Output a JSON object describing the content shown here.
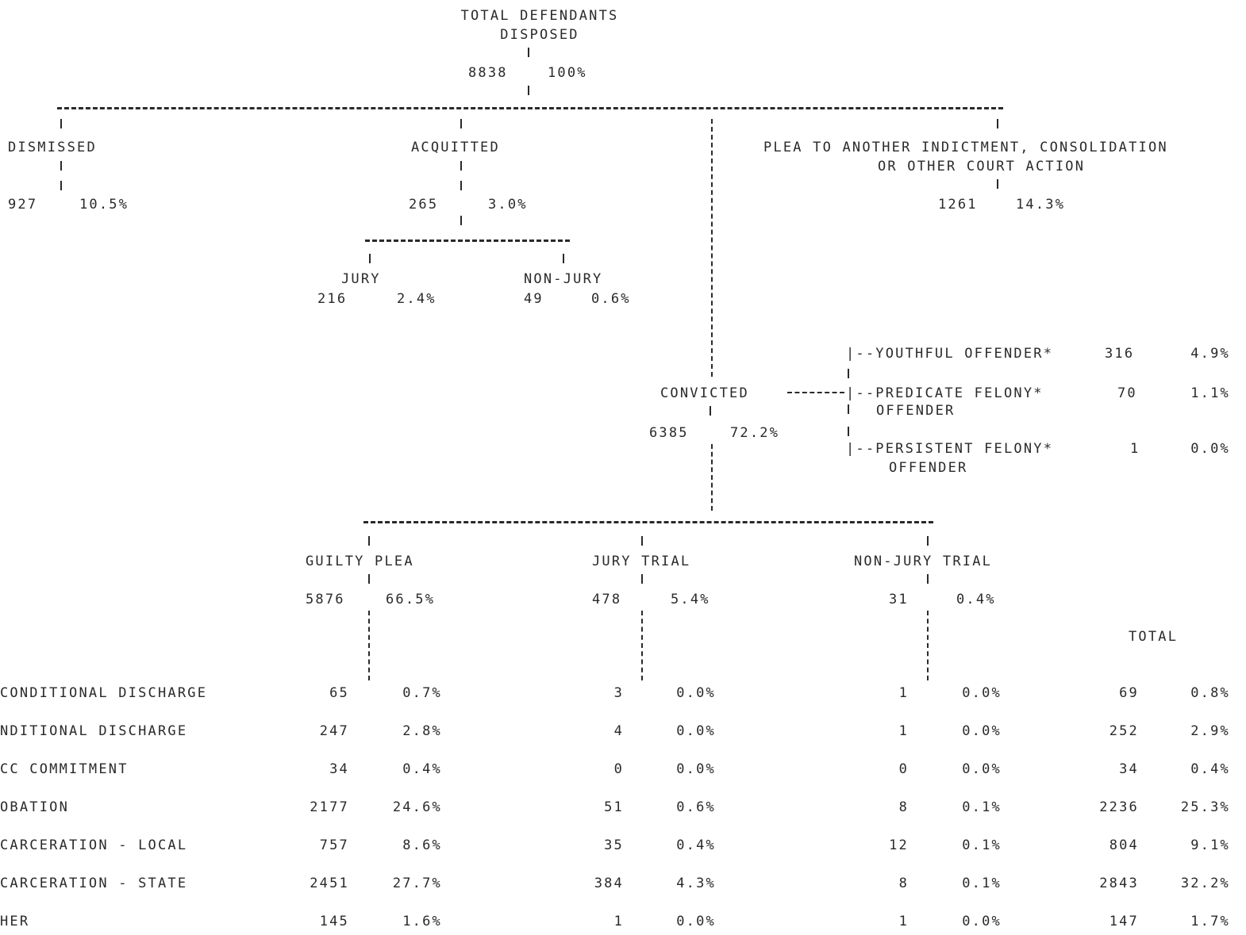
{
  "root": {
    "title_line1": "TOTAL DEFENDANTS",
    "title_line2": "DISPOSED",
    "count": "8838",
    "pct": "100%"
  },
  "dismissed": {
    "label": "DISMISSED",
    "count": "927",
    "pct": "10.5%"
  },
  "acquitted": {
    "label": "ACQUITTED",
    "count": "265",
    "pct": "3.0%",
    "jury": {
      "label": "JURY",
      "count": "216",
      "pct": "2.4%"
    },
    "nonjury": {
      "label": "NON-JURY",
      "count": "49",
      "pct": "0.6%"
    }
  },
  "plea_other": {
    "line1": "PLEA TO ANOTHER INDICTMENT, CONSOLIDATION",
    "line2": "OR OTHER COURT ACTION",
    "count": "1261",
    "pct": "14.3%"
  },
  "convicted": {
    "label": "CONVICTED",
    "count": "6385",
    "pct": "72.2%"
  },
  "offenders": [
    {
      "label": "|--YOUTHFUL OFFENDER*",
      "label2": "",
      "count": "316",
      "pct": "4.9%"
    },
    {
      "label": "|--PREDICATE FELONY*",
      "label2": "OFFENDER",
      "count": "70",
      "pct": "1.1%"
    },
    {
      "label": "|--PERSISTENT FELONY*",
      "label2": "OFFENDER",
      "count": "1",
      "pct": "0.0%"
    }
  ],
  "branches": {
    "guilty_plea": {
      "label": "GUILTY PLEA",
      "count": "5876",
      "pct": "66.5%"
    },
    "jury_trial": {
      "label": "JURY TRIAL",
      "count": "478",
      "pct": "5.4%"
    },
    "nonjury_trial": {
      "label": "NON-JURY TRIAL",
      "count": "31",
      "pct": "0.4%"
    }
  },
  "total_header": "TOTAL",
  "rows": [
    {
      "label": "CONDITIONAL DISCHARGE",
      "gp": "65",
      "gp_pct": "0.7%",
      "jt": "3",
      "jt_pct": "0.0%",
      "nj": "1",
      "nj_pct": "0.0%",
      "tot": "69",
      "tot_pct": "0.8%"
    },
    {
      "label": "NDITIONAL DISCHARGE",
      "gp": "247",
      "gp_pct": "2.8%",
      "jt": "4",
      "jt_pct": "0.0%",
      "nj": "1",
      "nj_pct": "0.0%",
      "tot": "252",
      "tot_pct": "2.9%"
    },
    {
      "label": "CC COMMITMENT",
      "gp": "34",
      "gp_pct": "0.4%",
      "jt": "0",
      "jt_pct": "0.0%",
      "nj": "0",
      "nj_pct": "0.0%",
      "tot": "34",
      "tot_pct": "0.4%"
    },
    {
      "label": "OBATION",
      "gp": "2177",
      "gp_pct": "24.6%",
      "jt": "51",
      "jt_pct": "0.6%",
      "nj": "8",
      "nj_pct": "0.1%",
      "tot": "2236",
      "tot_pct": "25.3%"
    },
    {
      "label": "CARCERATION - LOCAL",
      "gp": "757",
      "gp_pct": "8.6%",
      "jt": "35",
      "jt_pct": "0.4%",
      "nj": "12",
      "nj_pct": "0.1%",
      "tot": "804",
      "tot_pct": "9.1%"
    },
    {
      "label": "CARCERATION - STATE",
      "gp": "2451",
      "gp_pct": "27.7%",
      "jt": "384",
      "jt_pct": "4.3%",
      "nj": "8",
      "nj_pct": "0.1%",
      "tot": "2843",
      "tot_pct": "32.2%"
    },
    {
      "label": "HER",
      "gp": "145",
      "gp_pct": "1.6%",
      "jt": "1",
      "jt_pct": "0.0%",
      "nj": "1",
      "nj_pct": "0.0%",
      "tot": "147",
      "tot_pct": "1.7%"
    }
  ]
}
